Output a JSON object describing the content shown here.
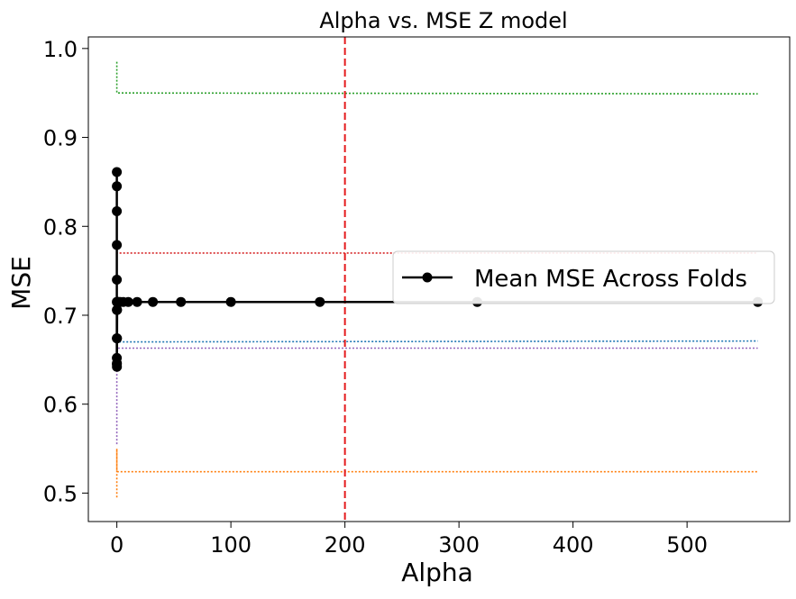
{
  "chart_data": {
    "type": "line",
    "title": "Alpha vs. MSE Z model",
    "xlabel": "Alpha",
    "ylabel": "MSE",
    "xlim": [
      -25,
      590
    ],
    "ylim": [
      0.468,
      1.013
    ],
    "xticks": [
      0,
      100,
      200,
      300,
      400,
      500
    ],
    "yticks": [
      0.5,
      0.6,
      0.7,
      0.8,
      0.9,
      1.0
    ],
    "grid": false,
    "legend_position": "center-right",
    "series": [
      {
        "name": "Mean MSE Across Folds",
        "color": "#000000",
        "style": "solid-marker",
        "points": [
          [
            0.0001,
            0.861
          ],
          [
            0.0002,
            0.845
          ],
          [
            0.0003,
            0.817
          ],
          [
            0.0006,
            0.779
          ],
          [
            0.001,
            0.74
          ],
          [
            0.0018,
            0.715
          ],
          [
            0.0032,
            0.706
          ],
          [
            0.0056,
            0.674
          ],
          [
            0.01,
            0.652
          ],
          [
            0.018,
            0.645
          ],
          [
            0.032,
            0.642
          ],
          [
            0.056,
            0.646
          ],
          [
            0.1,
            0.674
          ],
          [
            0.178,
            0.706
          ],
          [
            0.316,
            0.715
          ],
          [
            0.562,
            0.715
          ],
          [
            1,
            0.715
          ],
          [
            1.78,
            0.715
          ],
          [
            3.16,
            0.715
          ],
          [
            5.62,
            0.715
          ],
          [
            10,
            0.715
          ],
          [
            17.8,
            0.715
          ],
          [
            31.6,
            0.715
          ],
          [
            56.2,
            0.715
          ],
          [
            100,
            0.715
          ],
          [
            178,
            0.715
          ],
          [
            316,
            0.715
          ],
          [
            562,
            0.715
          ]
        ]
      }
    ],
    "fold_series": [
      {
        "color": "#2ca02c",
        "points": [
          [
            0,
            0.985
          ],
          [
            0,
            0.95
          ],
          [
            562,
            0.949
          ]
        ]
      },
      {
        "color": "#d62728",
        "points": [
          [
            0,
            0.86
          ],
          [
            0,
            0.77
          ],
          [
            562,
            0.77
          ]
        ]
      },
      {
        "color": "#1f77b4",
        "points": [
          [
            0,
            0.72
          ],
          [
            0,
            0.67
          ],
          [
            562,
            0.671
          ]
        ]
      },
      {
        "color": "#9467bd",
        "points": [
          [
            0,
            0.555
          ],
          [
            0,
            0.663
          ],
          [
            562,
            0.663
          ]
        ]
      },
      {
        "color": "#ff7f0e",
        "points": [
          [
            0,
            0.495
          ],
          [
            0,
            0.55
          ],
          [
            0,
            0.524
          ],
          [
            562,
            0.524
          ]
        ]
      }
    ],
    "vline": {
      "x": 200,
      "color": "#e41a1c",
      "style": "dashed"
    }
  }
}
